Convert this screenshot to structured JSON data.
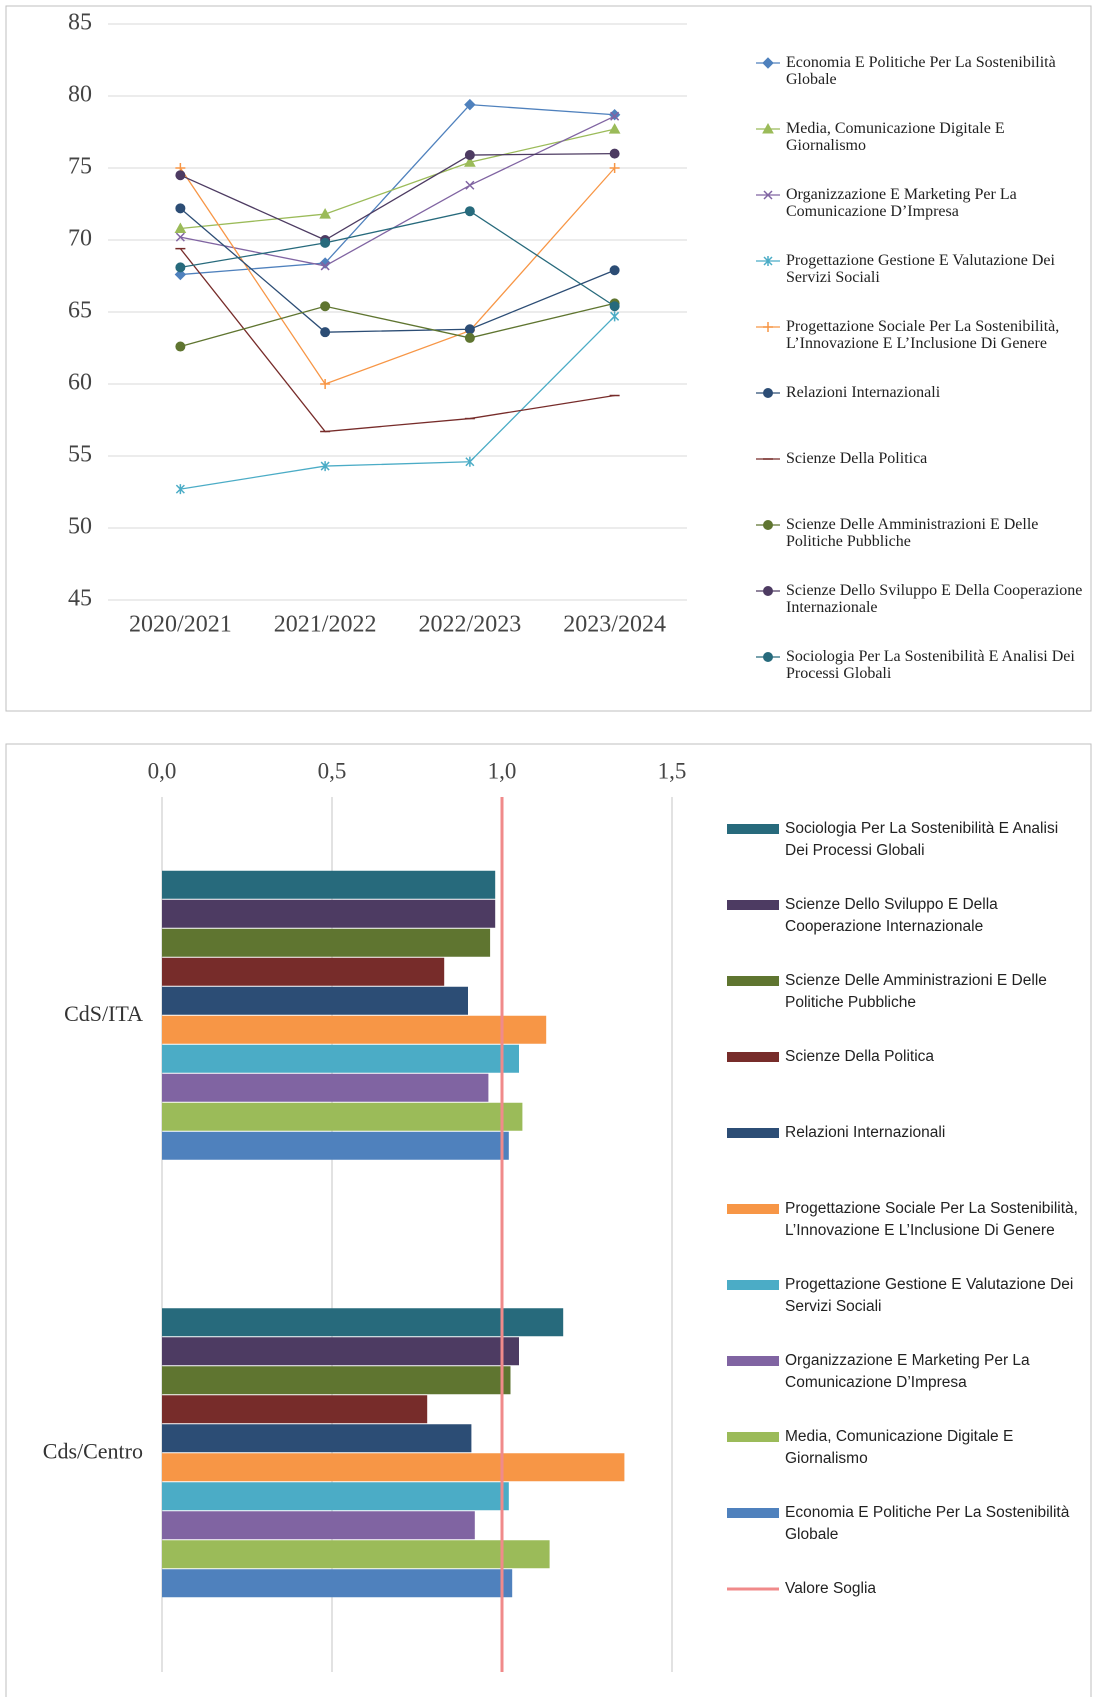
{
  "chart_data": [
    {
      "type": "line",
      "categories": [
        "2020/2021",
        "2021/2022",
        "2022/2023",
        "2023/2024"
      ],
      "ylim": [
        45,
        85
      ],
      "yticks": [
        45,
        50,
        55,
        60,
        65,
        70,
        75,
        80,
        85
      ],
      "grid": true,
      "series": [
        {
          "name": "Economia E Politiche Per La Sostenibilità Globale",
          "color": "#4f81bd",
          "marker": "diamond",
          "values": [
            67.6,
            68.4,
            79.4,
            78.7
          ]
        },
        {
          "name": "Media, Comunicazione Digitale E Giornalismo",
          "color": "#9bbb59",
          "marker": "triangle",
          "values": [
            70.8,
            71.8,
            75.4,
            77.7
          ]
        },
        {
          "name": "Organizzazione E Marketing Per La Comunicazione D’Impresa",
          "color": "#8064a2",
          "marker": "x",
          "values": [
            70.2,
            68.2,
            73.8,
            78.6
          ]
        },
        {
          "name": "Progettazione Gestione E Valutazione Dei Servizi Sociali",
          "color": "#4bacc6",
          "marker": "star",
          "values": [
            52.7,
            54.3,
            54.6,
            64.7
          ]
        },
        {
          "name": "Progettazione Sociale Per La Sostenibilità, L’Innovazione E L’Inclusione Di Genere",
          "color": "#f79646",
          "marker": "plus",
          "values": [
            75.0,
            60.0,
            63.7,
            75.0
          ]
        },
        {
          "name": "Relazioni Internazionali",
          "color": "#2c4d75",
          "marker": "circle",
          "values": [
            72.2,
            63.6,
            63.8,
            67.9
          ]
        },
        {
          "name": "Scienze Della Politica",
          "color": "#772c2a",
          "marker": "dash",
          "values": [
            69.4,
            56.7,
            57.6,
            59.2
          ]
        },
        {
          "name": "Scienze Delle Amministrazioni E Delle Politiche Pubbliche",
          "color": "#5f7530",
          "marker": "circle",
          "values": [
            62.6,
            65.4,
            63.2,
            65.6
          ]
        },
        {
          "name": "Scienze Dello Sviluppo E Della Cooperazione Internazionale",
          "color": "#4d3b62",
          "marker": "circle",
          "values": [
            74.5,
            70.0,
            75.9,
            76.0
          ]
        },
        {
          "name": "Sociologia Per La Sostenibilità  E Analisi Dei Processi Globali",
          "color": "#276a7c",
          "marker": "circle",
          "values": [
            68.1,
            69.8,
            72.0,
            65.4
          ]
        }
      ]
    },
    {
      "type": "bar",
      "orientation": "horizontal",
      "categories": [
        "CdS/ITA",
        "Cds/Centro"
      ],
      "xlim": [
        0,
        1.5
      ],
      "xticks": [
        {
          "value": 0,
          "label": "0,0"
        },
        {
          "value": 0.5,
          "label": "0,5"
        },
        {
          "value": 1,
          "label": "1,0"
        },
        {
          "value": 1.5,
          "label": "1,5"
        }
      ],
      "grid": true,
      "series": [
        {
          "name": "Sociologia Per La Sostenibilità  E Analisi Dei Processi Globali",
          "color": "#276a7c",
          "values": [
            0.98,
            1.18
          ]
        },
        {
          "name": "Scienze Dello Sviluppo E Della Cooperazione Internazionale",
          "color": "#4d3b62",
          "values": [
            0.98,
            1.05
          ]
        },
        {
          "name": "Scienze Delle Amministrazioni E Delle Politiche Pubbliche",
          "color": "#5f7530",
          "values": [
            0.965,
            1.025
          ]
        },
        {
          "name": "Scienze Della Politica",
          "color": "#772c2a",
          "values": [
            0.83,
            0.78
          ]
        },
        {
          "name": "Relazioni Internazionali",
          "color": "#2c4d75",
          "values": [
            0.9,
            0.91
          ]
        },
        {
          "name": "Progettazione Sociale Per La Sostenibilità, L’Innovazione E L’Inclusione Di Genere",
          "color": "#f79646",
          "values": [
            1.13,
            1.36
          ]
        },
        {
          "name": "Progettazione Gestione E Valutazione Dei Servizi Sociali",
          "color": "#4bacc6",
          "values": [
            1.05,
            1.02
          ]
        },
        {
          "name": "Organizzazione E Marketing Per La Comunicazione D’Impresa",
          "color": "#8064a2",
          "values": [
            0.96,
            0.92
          ]
        },
        {
          "name": "Media, Comunicazione Digitale E Giornalismo",
          "color": "#9bbb59",
          "values": [
            1.06,
            1.14
          ]
        },
        {
          "name": "Economia E Politiche Per La Sostenibilità Globale",
          "color": "#4f81bd",
          "values": [
            1.02,
            1.03
          ]
        }
      ],
      "threshold": {
        "name": "Valore Soglia",
        "value": 1,
        "color": "#f08a8a"
      }
    }
  ]
}
